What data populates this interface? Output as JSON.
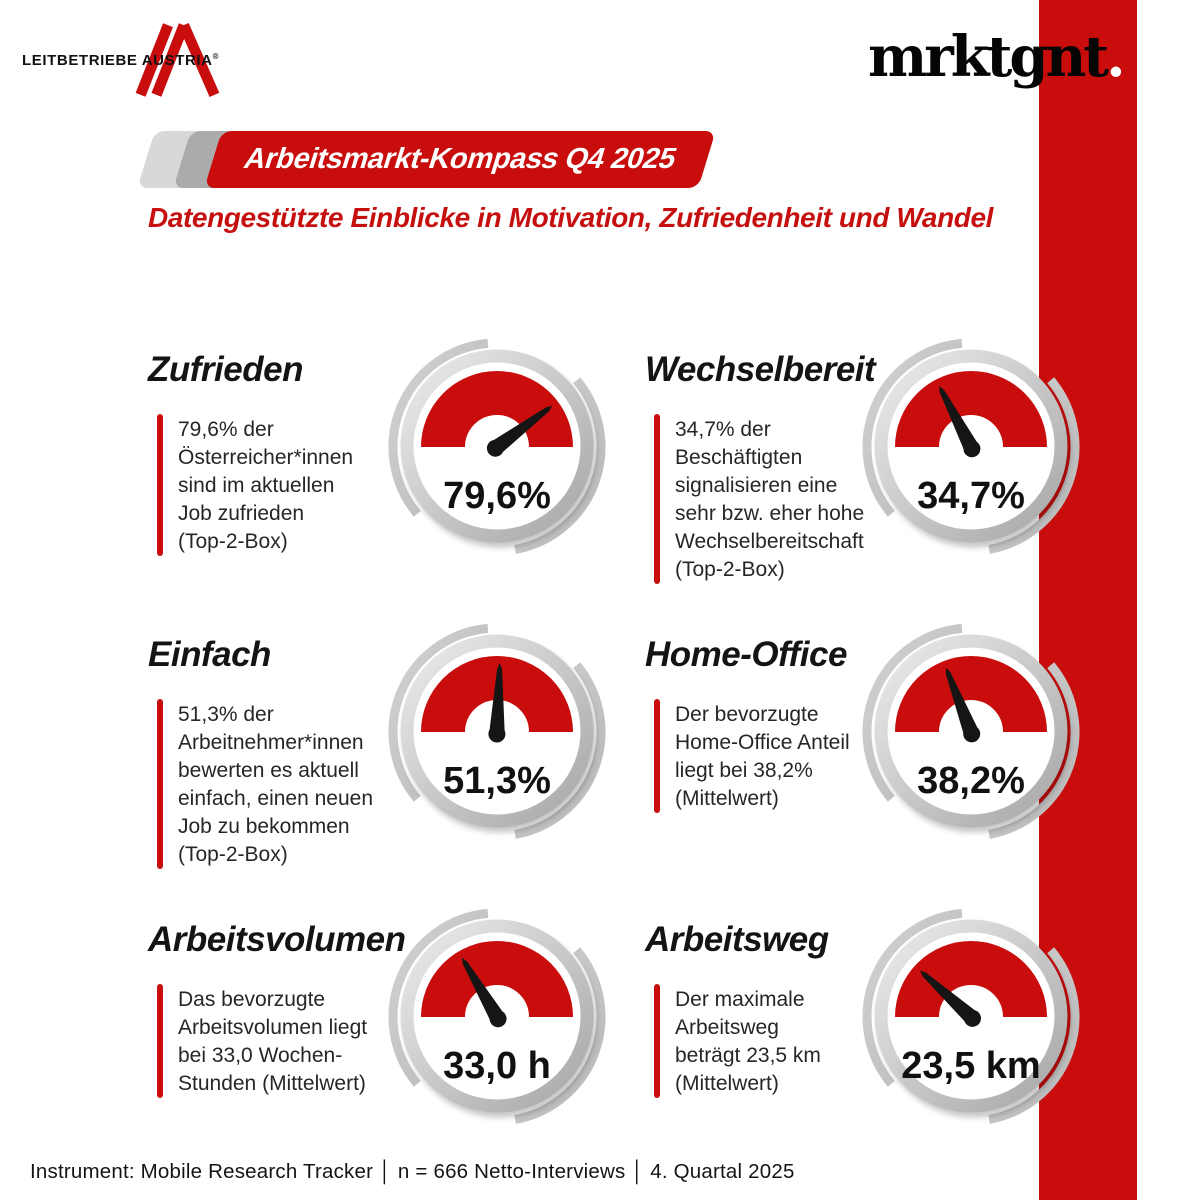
{
  "page": {
    "accent_red": "#c90d0d",
    "background": "#ffffff"
  },
  "header": {
    "left_logo": {
      "text": "LEITBETRIEBE AUSTRIA",
      "registered_mark": "®"
    },
    "right_logo": {
      "text": "mrktgnt",
      "dot": "."
    }
  },
  "banner": {
    "label": "Arbeitsmarkt-Kompass Q4 2025"
  },
  "subtitle": "Datengestützte Einblicke in Motivation, Zufriedenheit und Wandel",
  "chart_data": [
    {
      "type": "gauge",
      "title": "Zufrieden",
      "value": 79.6,
      "display": "79,6%",
      "range": [
        0,
        100
      ],
      "desc_lines": [
        "79,6% der",
        "Österreicher*innen",
        "sind im aktuellen",
        "Job zufrieden",
        "(Top-2-Box)"
      ]
    },
    {
      "type": "gauge",
      "title": "Wechselbereit",
      "value": 34.7,
      "display": "34,7%",
      "range": [
        0,
        100
      ],
      "desc_lines": [
        "34,7% der",
        "Beschäftigten",
        "signalisieren eine",
        "sehr bzw. eher hohe",
        "Wechselbereitschaft",
        "(Top-2-Box)"
      ]
    },
    {
      "type": "gauge",
      "title": "Einfach",
      "value": 51.3,
      "display": "51,3%",
      "range": [
        0,
        100
      ],
      "desc_lines": [
        "51,3% der",
        "Arbeitnehmer*innen",
        "bewerten es aktuell",
        "einfach, einen neuen",
        "Job zu bekommen",
        "(Top-2-Box)"
      ]
    },
    {
      "type": "gauge",
      "title": "Home-Office",
      "value": 38.2,
      "display": "38,2%",
      "range": [
        0,
        100
      ],
      "desc_lines": [
        "Der bevorzugte",
        "Home-Office Anteil",
        "liegt bei 38,2%",
        "(Mittelwert)"
      ]
    },
    {
      "type": "gauge",
      "title": "Arbeitsvolumen",
      "value": 33.0,
      "display": "33,0 h",
      "range": [
        0,
        100
      ],
      "desc_lines": [
        "Das bevorzugte",
        "Arbeitsvolumen liegt",
        "bei 33,0 Wochen-",
        "Stunden (Mittelwert)"
      ]
    },
    {
      "type": "gauge",
      "title": "Arbeitsweg",
      "value": 23.5,
      "display": "23,5 km",
      "range": [
        0,
        100
      ],
      "desc_lines": [
        "Der maximale",
        "Arbeitsweg",
        "beträgt 23,5 km",
        "(Mittelwert)"
      ]
    }
  ],
  "footer": {
    "text": "Instrument: Mobile Research Tracker │ n = 666 Netto-Interviews │ 4. Quartal 2025"
  }
}
